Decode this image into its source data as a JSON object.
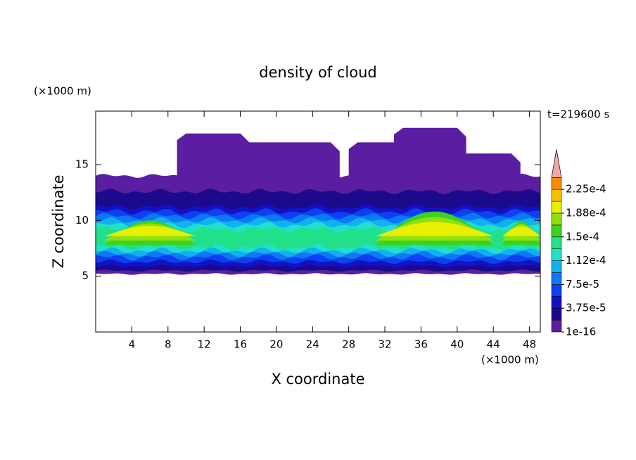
{
  "chart_data": {
    "type": "contour",
    "title": "density of cloud",
    "xlabel": "X coordinate",
    "ylabel": "Z coordinate",
    "xunit": "(×1000 m)",
    "yunit": "(×1000 m)",
    "time_label": "t=219600 s",
    "xlim": [
      0,
      49.2
    ],
    "ylim": [
      0,
      19.8
    ],
    "xticks": [
      4,
      8,
      12,
      16,
      20,
      24,
      28,
      32,
      36,
      40,
      44,
      48
    ],
    "yticks": [
      5,
      10,
      15
    ],
    "colorbar": {
      "colors": [
        "#5b1ea3",
        "#1c0a8c",
        "#1212c4",
        "#0c40f0",
        "#0c78f4",
        "#12b0f0",
        "#1ee0cc",
        "#22e08a",
        "#3cd21e",
        "#90e010",
        "#e6f000",
        "#f4c000",
        "#f48c00",
        "#f04a00",
        "#e01010"
      ],
      "extend_color": "#f4a6a6",
      "ticks": [
        {
          "value": 1e-16,
          "label": "1e-16"
        },
        {
          "value": 3.75e-05,
          "label": "3.75e-5"
        },
        {
          "value": 7.5e-05,
          "label": "7.5e-5"
        },
        {
          "value": 0.000112,
          "label": "1.12e-4"
        },
        {
          "value": 0.00015,
          "label": "1.5e-4"
        },
        {
          "value": 0.000188,
          "label": "1.88e-4"
        },
        {
          "value": 0.000225,
          "label": "2.25e-4"
        }
      ]
    }
  }
}
